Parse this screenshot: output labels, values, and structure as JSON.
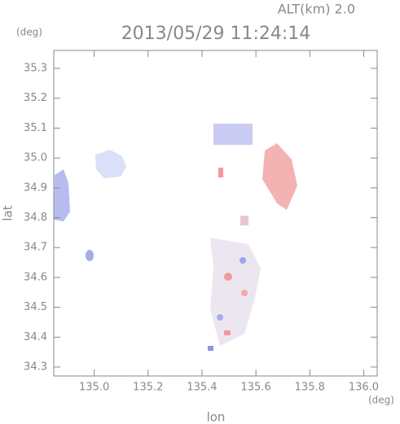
{
  "chart_data": {
    "type": "map",
    "title": "2013/05/29 11:24:14",
    "subtitle": "ALT(km) 2.0",
    "x_label": "lon",
    "y_label": "lat",
    "x_unit": "(deg)",
    "y_unit": "(deg)",
    "xlim": [
      134.85,
      136.05
    ],
    "ylim": [
      34.27,
      35.36
    ],
    "xticks": [
      {
        "value": 135,
        "label": "135.0"
      },
      135.2,
      135.4,
      135.6,
      135.8,
      {
        "value": 136,
        "label": "136.0"
      }
    ],
    "yticks": [
      34.3,
      34.4,
      34.5,
      34.6,
      34.7,
      34.8,
      34.9,
      {
        "value": 35,
        "label": "35.0"
      },
      35.1,
      35.2,
      35.3
    ]
  }
}
